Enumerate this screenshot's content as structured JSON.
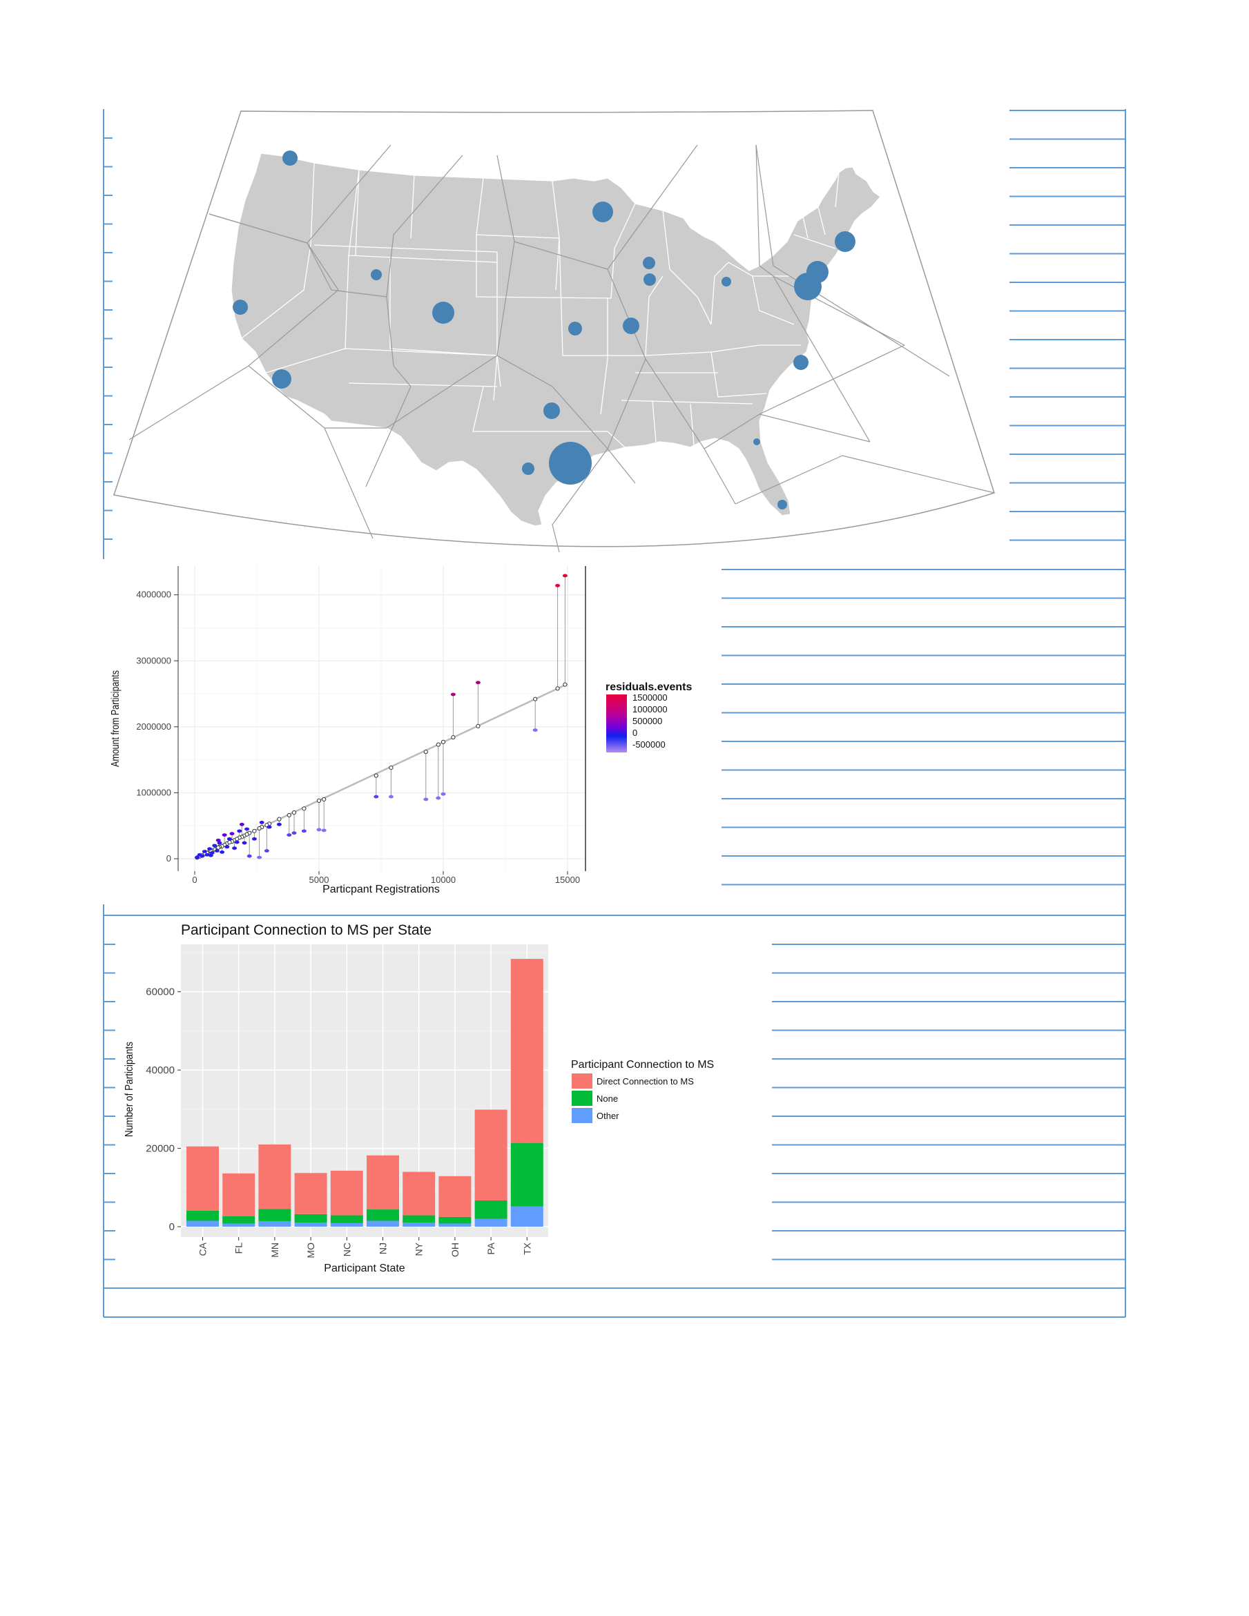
{
  "page": {
    "accent_line_color": "#5b9bd5"
  },
  "map": {
    "land_color": "#cccccc",
    "bubble_color": "#4682b4",
    "voronoi_color": "#999999"
  },
  "scatter": {
    "xlabel": "Particpant Registrations",
    "ylabel": "Amount from Participants",
    "x_ticks": [
      "0",
      "5000",
      "10000",
      "15000"
    ],
    "y_ticks": [
      "0",
      "1000000",
      "2000000",
      "3000000",
      "4000000"
    ],
    "legend": {
      "title": "residuals.events",
      "labels": [
        "1500000",
        "1000000",
        "500000",
        "0",
        "-500000"
      ],
      "gradient_colors": [
        "#e8003a",
        "#c2008a",
        "#7a00d8",
        "#1020f0",
        "#b48cf0"
      ]
    }
  },
  "chart_data": [
    {
      "type": "scatter",
      "title": "",
      "xlabel": "Particpant Registrations",
      "ylabel": "Amount from Participants",
      "xlim": [
        0,
        15000
      ],
      "ylim": [
        0,
        4300000
      ],
      "grid": true,
      "legend_position": "right",
      "fit_line": {
        "x": [
          0,
          15000
        ],
        "y": [
          0,
          2650000
        ]
      },
      "points": [
        {
          "x": 14900,
          "y": 4290000,
          "fit": 2640000,
          "resid": 1650000
        },
        {
          "x": 14600,
          "y": 4140000,
          "fit": 2580000,
          "resid": 1560000
        },
        {
          "x": 11400,
          "y": 2670000,
          "fit": 2010000,
          "resid": 660000
        },
        {
          "x": 10400,
          "y": 2490000,
          "fit": 1840000,
          "resid": 650000
        },
        {
          "x": 13700,
          "y": 1950000,
          "fit": 2420000,
          "resid": -470000
        },
        {
          "x": 7900,
          "y": 940000,
          "fit": 1380000,
          "resid": -440000
        },
        {
          "x": 7300,
          "y": 940000,
          "fit": 1260000,
          "resid": -320000
        },
        {
          "x": 9300,
          "y": 900000,
          "fit": 1620000,
          "resid": -720000
        },
        {
          "x": 9800,
          "y": 920000,
          "fit": 1730000,
          "resid": -810000
        },
        {
          "x": 10000,
          "y": 980000,
          "fit": 1770000,
          "resid": -790000
        },
        {
          "x": 5200,
          "y": 430000,
          "fit": 900000,
          "resid": -470000
        },
        {
          "x": 5000,
          "y": 440000,
          "fit": 880000,
          "resid": -440000
        },
        {
          "x": 4400,
          "y": 420000,
          "fit": 760000,
          "resid": -340000
        },
        {
          "x": 4000,
          "y": 390000,
          "fit": 700000,
          "resid": -310000
        },
        {
          "x": 3800,
          "y": 360000,
          "fit": 660000,
          "resid": -300000
        },
        {
          "x": 3400,
          "y": 520000,
          "fit": 600000,
          "resid": -80000
        },
        {
          "x": 2700,
          "y": 550000,
          "fit": 480000,
          "resid": 70000
        },
        {
          "x": 2600,
          "y": 20000,
          "fit": 460000,
          "resid": -440000
        },
        {
          "x": 2200,
          "y": 40000,
          "fit": 390000,
          "resid": -350000
        },
        {
          "x": 2000,
          "y": 240000,
          "fit": 350000,
          "resid": -110000
        },
        {
          "x": 1900,
          "y": 520000,
          "fit": 330000,
          "resid": 190000
        },
        {
          "x": 1800,
          "y": 420000,
          "fit": 320000,
          "resid": 100000
        },
        {
          "x": 1600,
          "y": 160000,
          "fit": 280000,
          "resid": -120000
        },
        {
          "x": 1500,
          "y": 380000,
          "fit": 260000,
          "resid": 120000
        },
        {
          "x": 1300,
          "y": 180000,
          "fit": 230000,
          "resid": -50000
        },
        {
          "x": 1200,
          "y": 360000,
          "fit": 210000,
          "resid": 150000
        },
        {
          "x": 1100,
          "y": 100000,
          "fit": 190000,
          "resid": -90000
        },
        {
          "x": 1000,
          "y": 240000,
          "fit": 180000,
          "resid": 60000
        },
        {
          "x": 900,
          "y": 120000,
          "fit": 160000,
          "resid": -40000
        },
        {
          "x": 800,
          "y": 200000,
          "fit": 140000,
          "resid": 60000
        },
        {
          "x": 700,
          "y": 90000,
          "fit": 120000,
          "resid": -30000
        },
        {
          "x": 600,
          "y": 150000,
          "fit": 110000,
          "resid": 40000
        },
        {
          "x": 500,
          "y": 60000,
          "fit": 90000,
          "resid": -30000
        },
        {
          "x": 400,
          "y": 110000,
          "fit": 70000,
          "resid": 40000
        },
        {
          "x": 300,
          "y": 40000,
          "fit": 50000,
          "resid": -10000
        },
        {
          "x": 200,
          "y": 60000,
          "fit": 35000,
          "resid": 25000
        },
        {
          "x": 100,
          "y": 20000,
          "fit": 18000,
          "resid": 2000
        },
        {
          "x": 2400,
          "y": 300000,
          "fit": 420000,
          "resid": -120000
        },
        {
          "x": 2100,
          "y": 450000,
          "fit": 370000,
          "resid": 80000
        },
        {
          "x": 1700,
          "y": 250000,
          "fit": 300000,
          "resid": -50000
        },
        {
          "x": 1400,
          "y": 300000,
          "fit": 250000,
          "resid": 50000
        },
        {
          "x": 950,
          "y": 280000,
          "fit": 170000,
          "resid": 110000
        },
        {
          "x": 650,
          "y": 50000,
          "fit": 115000,
          "resid": -65000
        },
        {
          "x": 3000,
          "y": 480000,
          "fit": 530000,
          "resid": -50000
        },
        {
          "x": 2900,
          "y": 120000,
          "fit": 510000,
          "resid": -390000
        }
      ]
    },
    {
      "type": "bar",
      "title": "Participant Connection to MS per State",
      "xlabel": "Participant State",
      "ylabel": "Number of Participants",
      "ylim": [
        0,
        70000
      ],
      "y_ticks": [
        0,
        20000,
        40000,
        60000
      ],
      "grid": true,
      "legend_title": "Participant Connection to MS",
      "legend_position": "right",
      "categories": [
        "CA",
        "FL",
        "MN",
        "MO",
        "NC",
        "NJ",
        "NY",
        "OH",
        "PA",
        "TX"
      ],
      "series": [
        {
          "name": "Other",
          "color": "#619cff",
          "values": [
            1500,
            800,
            1400,
            1000,
            900,
            1500,
            1000,
            800,
            2000,
            5200
          ]
        },
        {
          "name": "None",
          "color": "#00ba38",
          "values": [
            2600,
            1900,
            3100,
            2200,
            2000,
            2900,
            1900,
            1700,
            4700,
            16200
          ]
        },
        {
          "name": "Direct Connection to MS",
          "color": "#f8766d",
          "values": [
            16400,
            10900,
            16500,
            10500,
            11400,
            13800,
            11100,
            10400,
            23200,
            47000
          ]
        }
      ]
    }
  ]
}
